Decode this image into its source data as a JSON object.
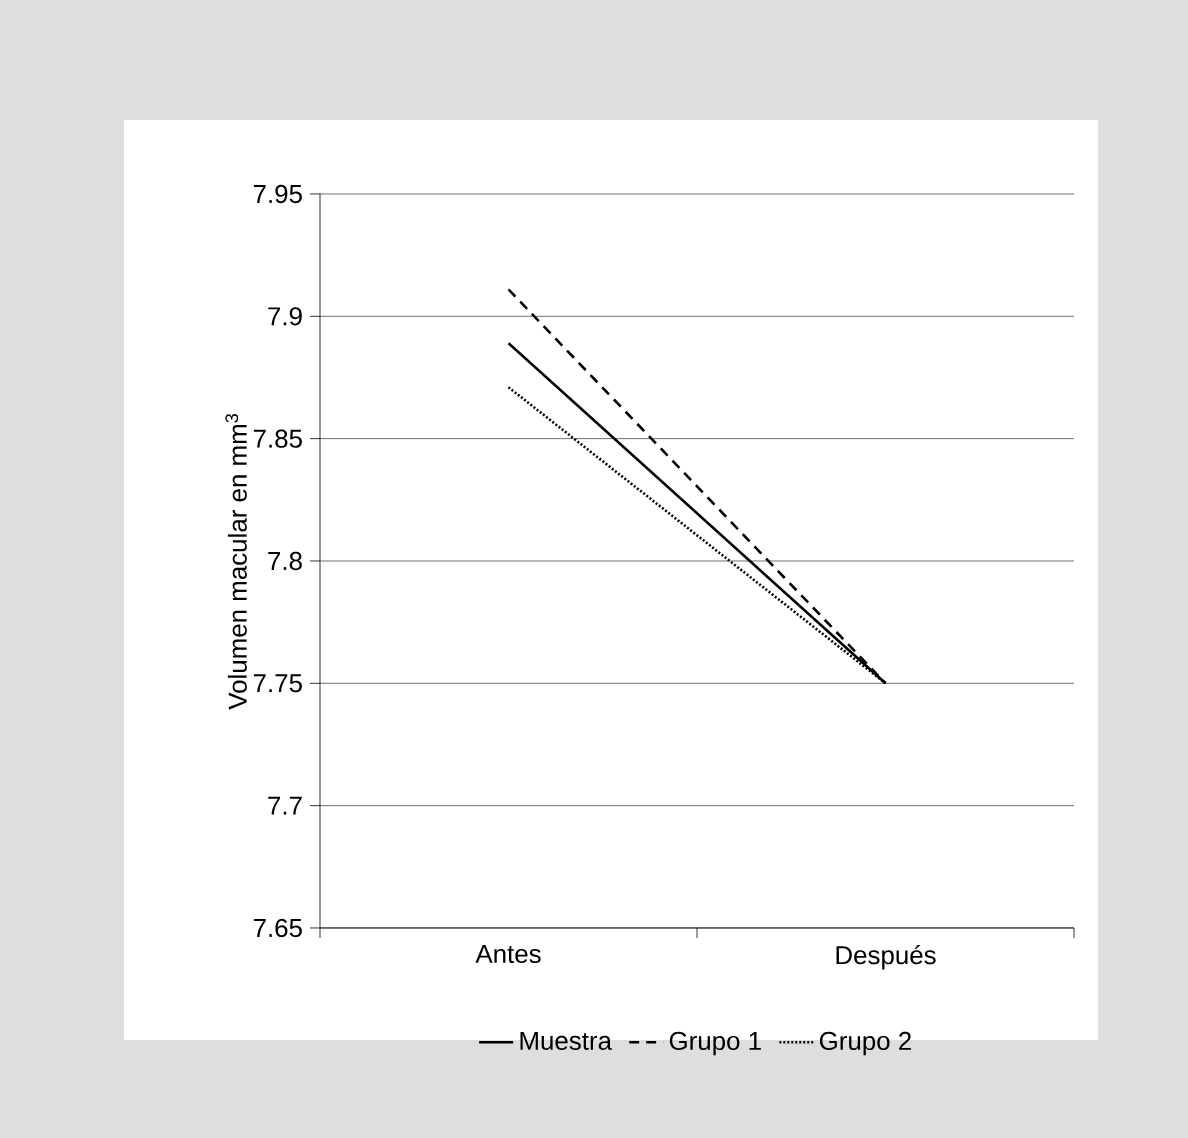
{
  "chart_data": {
    "type": "line",
    "ylabel": "Volumen macular en mm$^{3}$",
    "categories": [
      "Antes",
      "Después"
    ],
    "series": [
      {
        "name": "Muestra",
        "color": "#000000",
        "line_style": "solid",
        "values": [
          7.889,
          7.75
        ]
      },
      {
        "name": "Grupo 1",
        "color": "#000000",
        "line_style": "dashed",
        "values": [
          7.911,
          7.75
        ]
      },
      {
        "name": "Grupo 2",
        "color": "#000000",
        "line_style": "dotted",
        "values": [
          7.871,
          7.75
        ]
      }
    ],
    "ylim": [
      7.65,
      7.95
    ],
    "yticks": [
      7.65,
      7.7,
      7.75,
      7.8,
      7.85,
      7.9,
      7.95
    ],
    "grid": "y",
    "legend": "bottom",
    "marker": "none"
  }
}
